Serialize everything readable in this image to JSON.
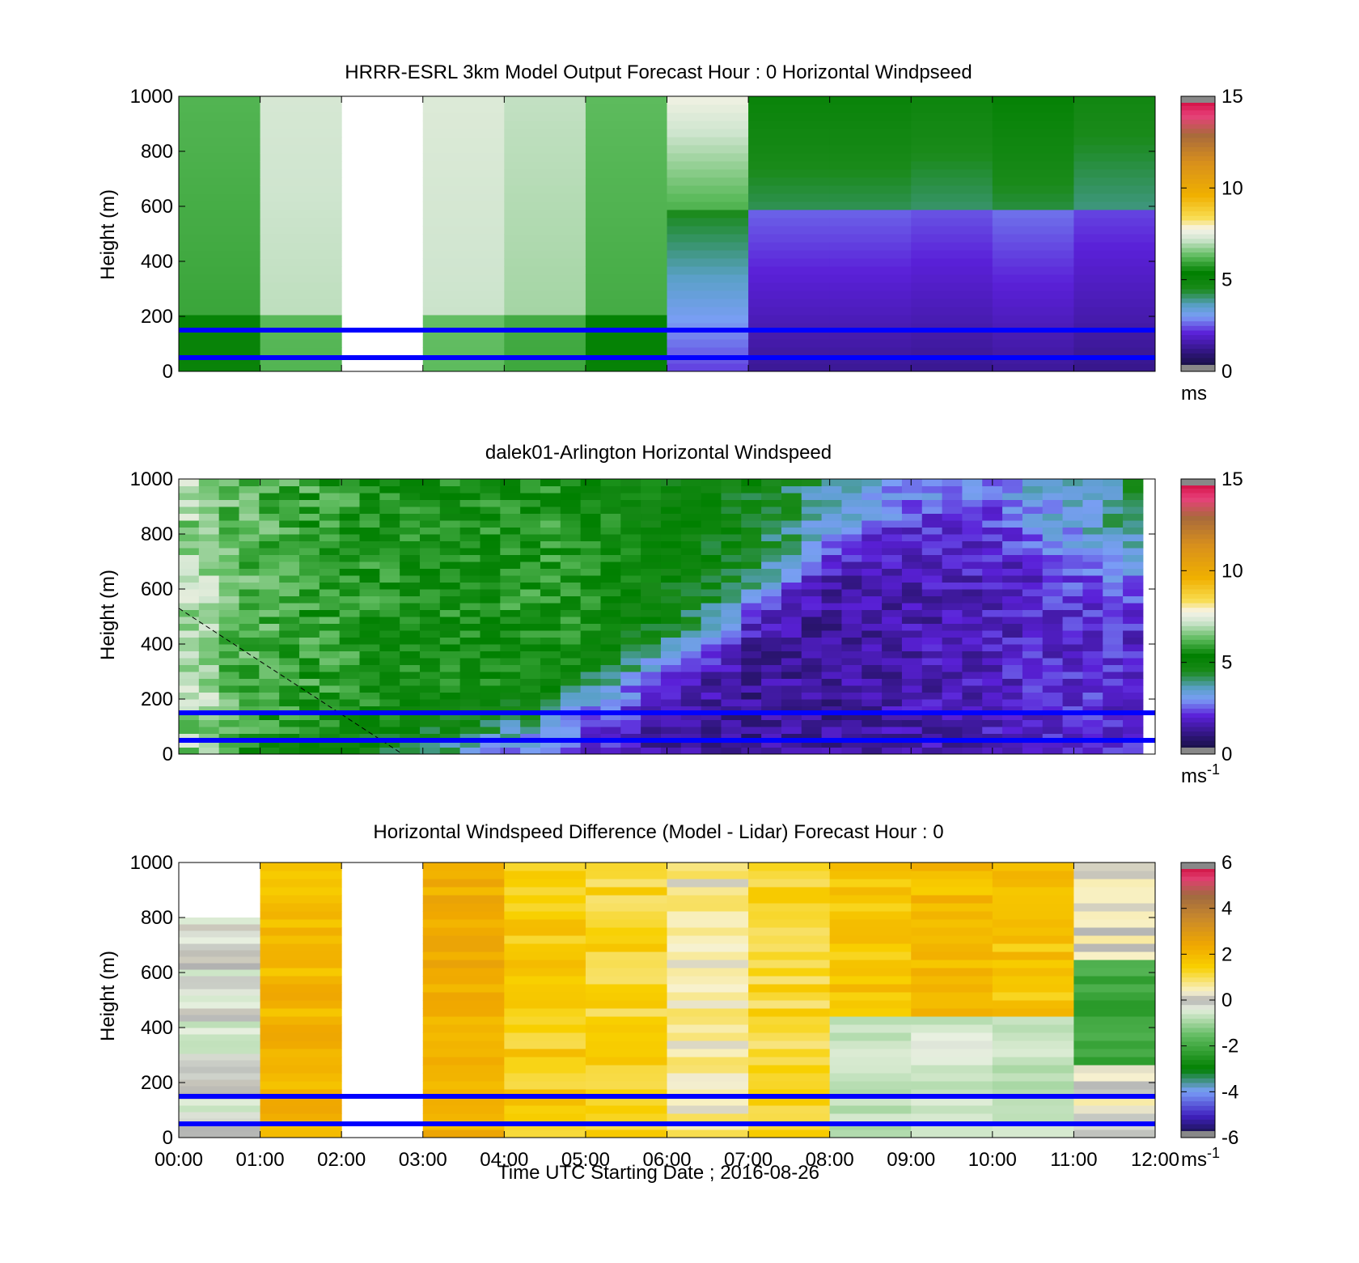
{
  "chart_data": [
    {
      "type": "heatmap",
      "title": "HRRR-ESRL 3km Model Output   Forecast Hour : 0 Horizontal Windpseed",
      "ylabel": "Height (m)",
      "xlabel": "",
      "ylim": [
        0,
        1000
      ],
      "yticks": [
        "0",
        "200",
        "400",
        "600",
        "800",
        "1000"
      ],
      "x_hours": [
        0,
        12
      ],
      "colorbar": {
        "min": 0,
        "max": 15,
        "ticks": [
          "0",
          "5",
          "10",
          "15"
        ],
        "unit": "ms",
        "unit_sup": ""
      },
      "reference_lines_m": [
        150,
        50
      ],
      "line_color": "#0000ff",
      "time_columns": [
        {
          "start": 0,
          "end": 1,
          "value": 5.9
        },
        {
          "start": 1,
          "end": 2,
          "value": 7.0
        },
        {
          "start": 3,
          "end": 4,
          "value": 7.1
        },
        {
          "start": 4,
          "end": 5,
          "value": 6.8
        },
        {
          "start": 5,
          "end": 6,
          "value": 6.0
        },
        {
          "start": 6,
          "end": 7,
          "value": 4.2
        },
        {
          "start": 7,
          "end": 8,
          "value": 2.4
        },
        {
          "start": 8,
          "end": 9,
          "value": 2.4
        },
        {
          "start": 9,
          "end": 10,
          "value": 2.3
        },
        {
          "start": 10,
          "end": 11,
          "value": 2.5
        },
        {
          "start": 11,
          "end": 12,
          "value": 2.2
        }
      ]
    },
    {
      "type": "heatmap",
      "title": "dalek01-Arlington  Horizontal Windspeed",
      "ylabel": "Height (m)",
      "xlabel": "",
      "ylim": [
        0,
        1000
      ],
      "yticks": [
        "0",
        "200",
        "400",
        "600",
        "800",
        "1000"
      ],
      "x_hours": [
        0,
        12
      ],
      "colorbar": {
        "min": 0,
        "max": 15,
        "ticks": [
          "0",
          "5",
          "10",
          "15"
        ],
        "unit": "ms",
        "unit_sup": "-1"
      },
      "reference_lines_m": [
        150,
        50
      ],
      "line_color": "#0000ff",
      "data_end_hour": 11.85,
      "profile_keyframes": [
        {
          "hour": 0.0,
          "transition_m": 0,
          "upper": 6.5,
          "lower": 5.5
        },
        {
          "hour": 3.0,
          "transition_m": 40,
          "upper": 5.5,
          "lower": 3.2
        },
        {
          "hour": 4.5,
          "transition_m": 150,
          "upper": 5.8,
          "lower": 2.2
        },
        {
          "hour": 6.0,
          "transition_m": 350,
          "upper": 5.0,
          "lower": 1.5
        },
        {
          "hour": 7.0,
          "transition_m": 550,
          "upper": 4.8,
          "lower": 1.3
        },
        {
          "hour": 8.0,
          "transition_m": 750,
          "upper": 3.8,
          "lower": 1.4
        },
        {
          "hour": 9.0,
          "transition_m": 870,
          "upper": 3.2,
          "lower": 1.6
        },
        {
          "hour": 10.0,
          "transition_m": 900,
          "upper": 3.3,
          "lower": 1.8
        },
        {
          "hour": 11.0,
          "transition_m": 700,
          "upper": 3.4,
          "lower": 2.1
        },
        {
          "hour": 11.85,
          "transition_m": 720,
          "upper": 4.5,
          "lower": 2.0
        }
      ]
    },
    {
      "type": "heatmap",
      "title": "Horizontal Windspeed Difference (Model - Lidar) Forecast Hour : 0",
      "ylabel": "Height (m)",
      "xlabel": "Time UTC  Starting Date ; 2016-08-26",
      "ylim": [
        0,
        1000
      ],
      "yticks": [
        "0",
        "200",
        "400",
        "600",
        "800",
        "1000"
      ],
      "xticks": [
        "00:00",
        "01:00",
        "02:00",
        "03:00",
        "04:00",
        "05:00",
        "06:00",
        "07:00",
        "08:00",
        "09:00",
        "10:00",
        "11:00",
        "12:00"
      ],
      "x_hours": [
        0,
        12
      ],
      "colorbar": {
        "min": -6,
        "max": 6,
        "ticks": [
          "-6",
          "-4",
          "-2",
          "0",
          "2",
          "4",
          "6"
        ],
        "unit": "ms",
        "unit_sup": "-1"
      },
      "reference_lines_m": [
        150,
        50
      ],
      "line_color": "#0000ff",
      "time_columns": [
        {
          "start": 0,
          "end": 1,
          "value": -0.3,
          "top_m": 800
        },
        {
          "start": 1,
          "end": 2,
          "value": 2.0
        },
        {
          "start": 3,
          "end": 4,
          "value": 2.3
        },
        {
          "start": 4,
          "end": 5,
          "value": 1.5
        },
        {
          "start": 5,
          "end": 6,
          "value": 1.3
        },
        {
          "start": 6,
          "end": 7,
          "value": 0.6
        },
        {
          "start": 7,
          "end": 8,
          "value": 1.2
        },
        {
          "start": 8,
          "end": 9,
          "value": 1.7
        },
        {
          "start": 9,
          "end": 10,
          "value": 1.9
        },
        {
          "start": 10,
          "end": 11,
          "value": 1.7
        },
        {
          "start": 11,
          "end": 12,
          "value": 0.2
        }
      ]
    }
  ]
}
